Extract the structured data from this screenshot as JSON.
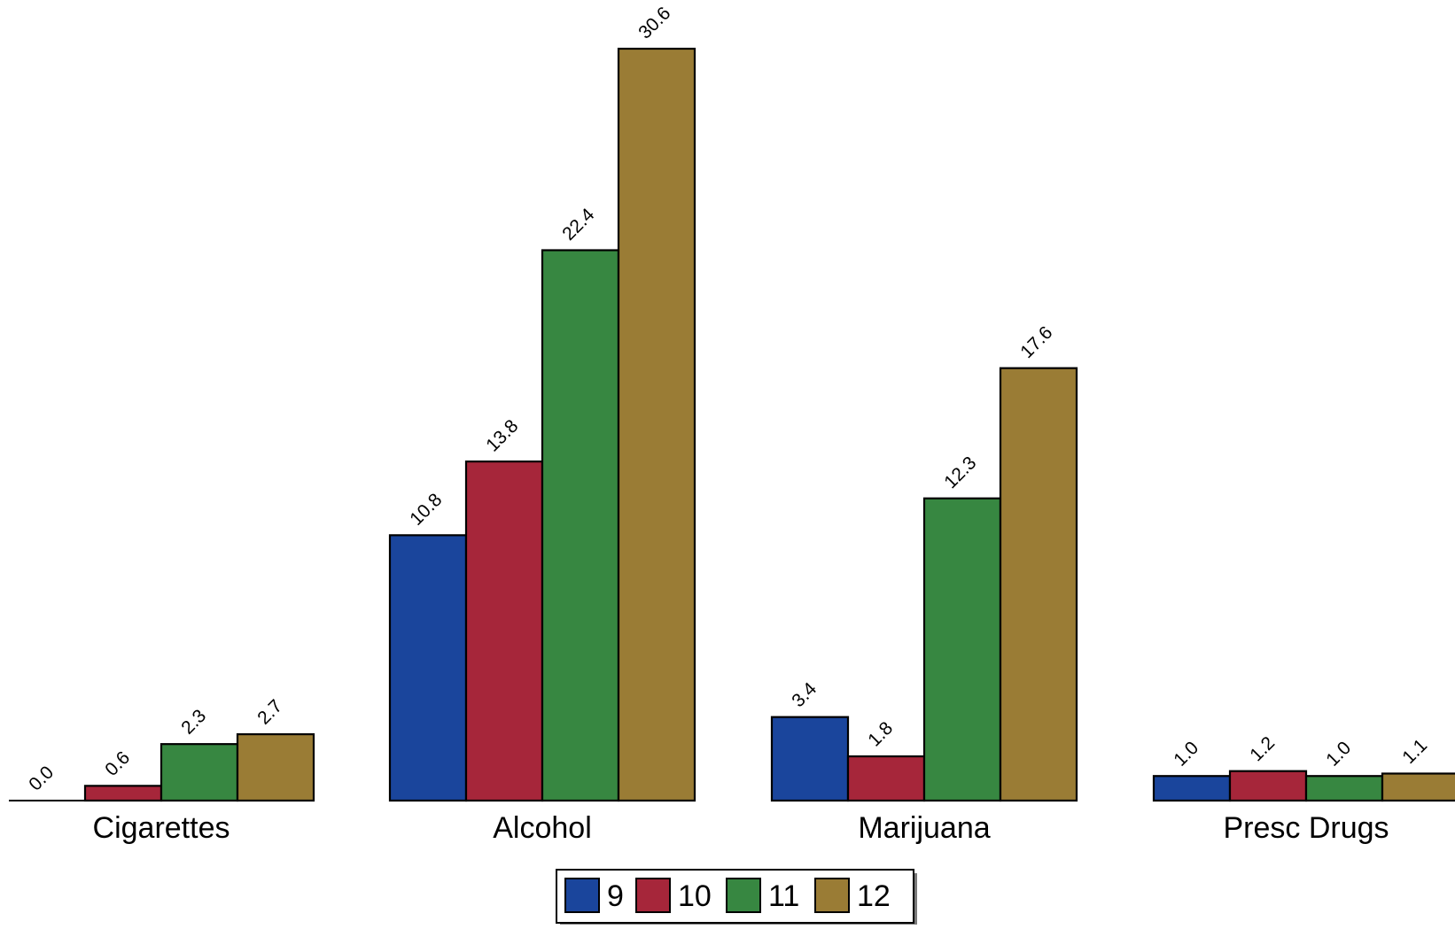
{
  "chart_data": {
    "type": "bar",
    "title": "",
    "xlabel": "",
    "ylabel": "",
    "ylim": [
      0,
      30.6
    ],
    "grid": false,
    "legend_position": "bottom-center",
    "categories": [
      "Cigarettes",
      "Alcohol",
      "Marijuana",
      "Presc Drugs"
    ],
    "series": [
      {
        "name": "9",
        "color": "#1a459c",
        "values": [
          0.0,
          10.8,
          3.4,
          1.0
        ],
        "labels": [
          "0.0",
          "10.8",
          "3.4",
          "1.0"
        ]
      },
      {
        "name": "10",
        "color": "#a6263a",
        "values": [
          0.6,
          13.8,
          1.8,
          1.2
        ],
        "labels": [
          "0.6",
          "13.8",
          "1.8",
          "1.2"
        ]
      },
      {
        "name": "11",
        "color": "#378741",
        "values": [
          2.3,
          22.4,
          12.3,
          1.0
        ],
        "labels": [
          "2.3",
          "22.4",
          "12.3",
          "1.0"
        ]
      },
      {
        "name": "12",
        "color": "#9a7c35",
        "values": [
          2.7,
          30.6,
          17.6,
          1.1
        ],
        "labels": [
          "2.7",
          "30.6",
          "17.6",
          "1.1"
        ]
      }
    ]
  }
}
